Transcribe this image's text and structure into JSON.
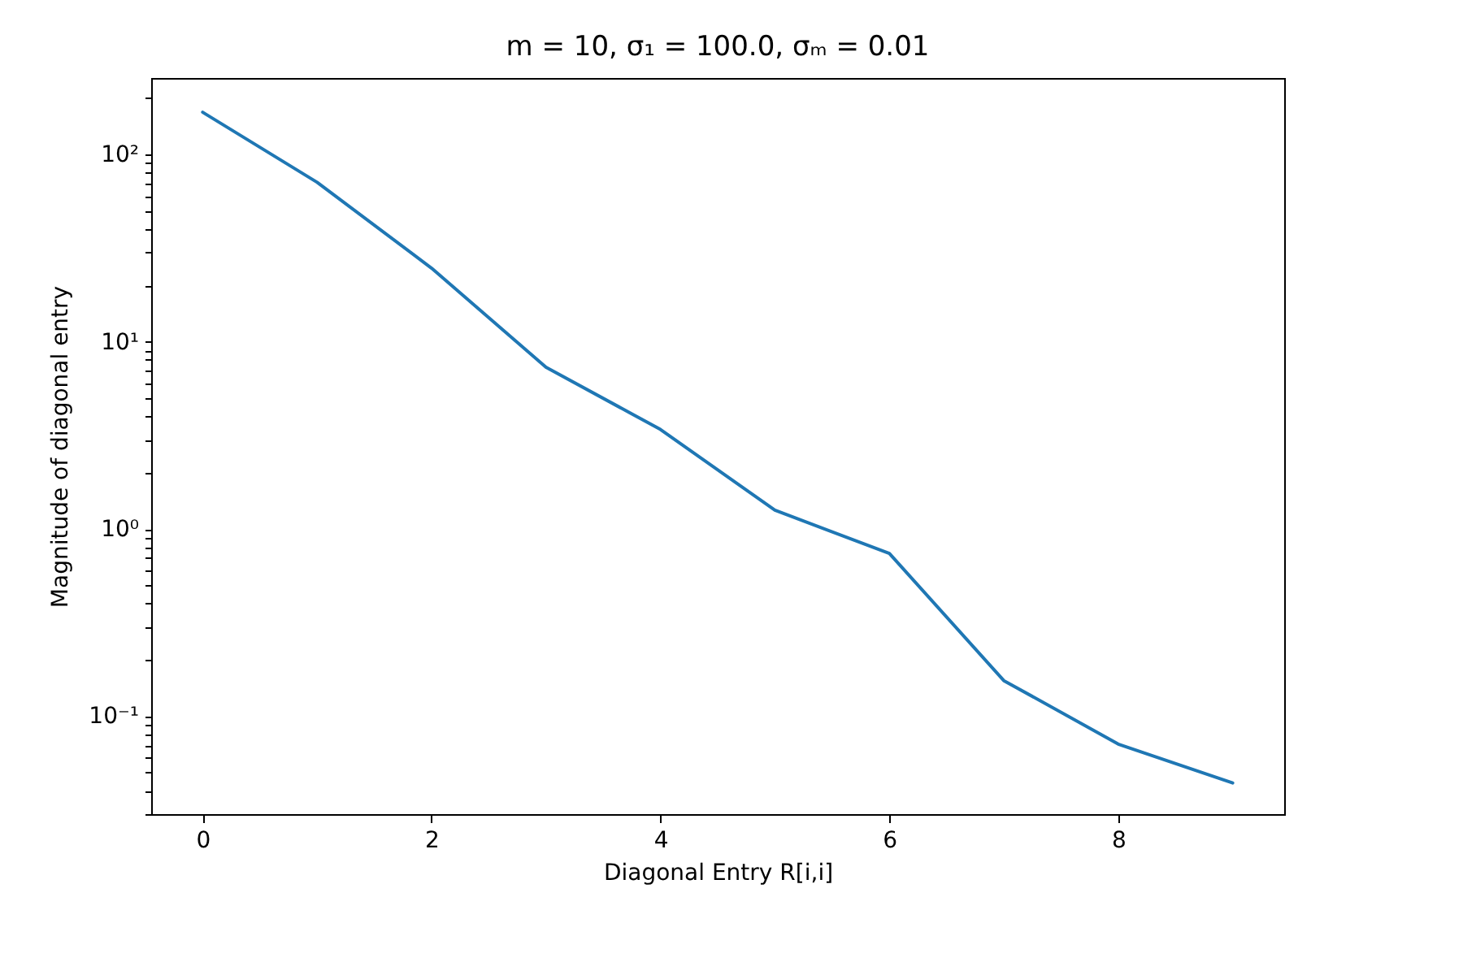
{
  "chart_data": {
    "type": "line",
    "title": "m = 10, σ₁ = 100.0, σₘ = 0.01",
    "xlabel": "Diagonal Entry R[i,i]",
    "ylabel": "Magnitude of diagonal entry",
    "x": [
      0,
      1,
      2,
      3,
      4,
      5,
      6,
      7,
      8,
      9
    ],
    "series": [
      {
        "color": "#1f77b4",
        "values": [
          168,
          71,
          24.7,
          7.3,
          3.4,
          1.26,
          0.74,
          0.155,
          0.071,
          0.044
        ]
      }
    ],
    "log": "y",
    "xlim": [
      -0.45,
      9.45
    ],
    "ylim": [
      0.03,
      256
    ],
    "xticks": [
      0,
      2,
      4,
      6,
      8
    ],
    "yticks": [
      {
        "value": 0.03,
        "label": null
      },
      {
        "value": 0.04,
        "label": null
      },
      {
        "value": 0.05,
        "label": null
      },
      {
        "value": 0.06,
        "label": null
      },
      {
        "value": 0.07,
        "label": null
      },
      {
        "value": 0.08,
        "label": null
      },
      {
        "value": 0.09,
        "label": null
      },
      {
        "value": 0.1,
        "label": "10⁻¹"
      },
      {
        "value": 0.2,
        "label": null
      },
      {
        "value": 0.3,
        "label": null
      },
      {
        "value": 0.4,
        "label": null
      },
      {
        "value": 0.5,
        "label": null
      },
      {
        "value": 0.6,
        "label": null
      },
      {
        "value": 0.7,
        "label": null
      },
      {
        "value": 0.8,
        "label": null
      },
      {
        "value": 0.9,
        "label": null
      },
      {
        "value": 1,
        "label": "10⁰"
      },
      {
        "value": 2,
        "label": null
      },
      {
        "value": 3,
        "label": null
      },
      {
        "value": 4,
        "label": null
      },
      {
        "value": 5,
        "label": null
      },
      {
        "value": 6,
        "label": null
      },
      {
        "value": 7,
        "label": null
      },
      {
        "value": 8,
        "label": null
      },
      {
        "value": 9,
        "label": null
      },
      {
        "value": 10,
        "label": "10¹"
      },
      {
        "value": 20,
        "label": null
      },
      {
        "value": 30,
        "label": null
      },
      {
        "value": 40,
        "label": null
      },
      {
        "value": 50,
        "label": null
      },
      {
        "value": 60,
        "label": null
      },
      {
        "value": 70,
        "label": null
      },
      {
        "value": 80,
        "label": null
      },
      {
        "value": 90,
        "label": null
      },
      {
        "value": 100,
        "label": "10²"
      },
      {
        "value": 200,
        "label": null
      }
    ],
    "grid": false,
    "marker": "none",
    "line_style": "solid"
  }
}
